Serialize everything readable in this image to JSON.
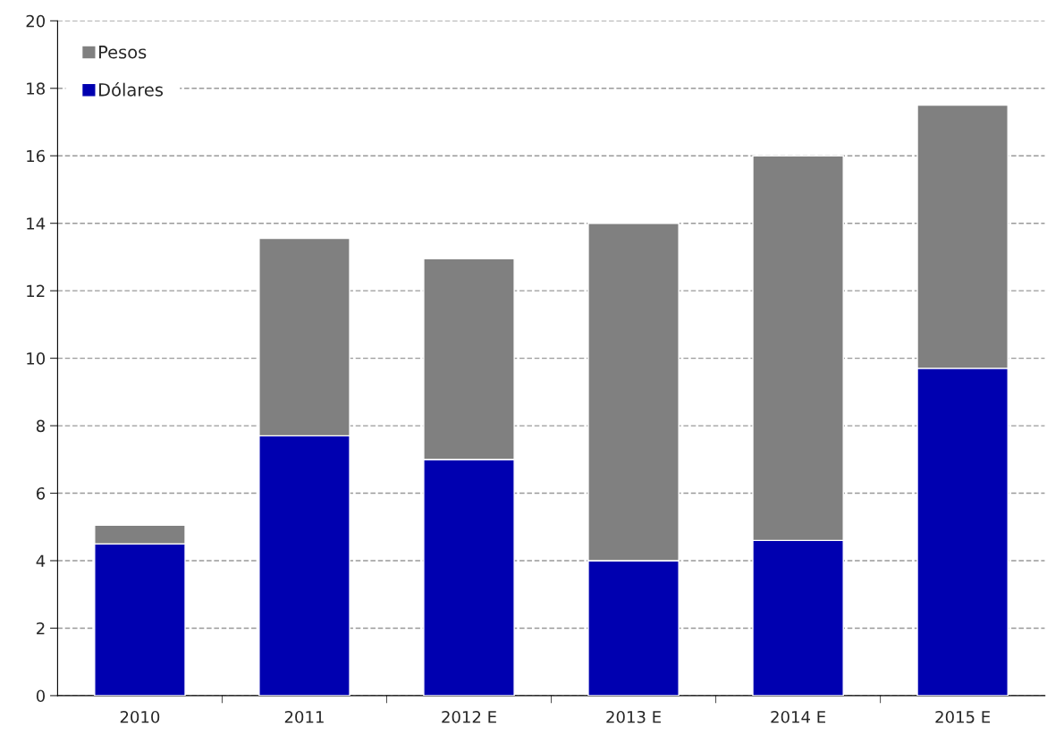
{
  "chart_data": {
    "type": "bar",
    "stacked": true,
    "categories": [
      "2010",
      "2011",
      "2012 E",
      "2013 E",
      "2014 E",
      "2015 E"
    ],
    "series": [
      {
        "name": "Dólares",
        "color": "#0000b0",
        "values": [
          4.5,
          7.7,
          7.0,
          4.0,
          4.6,
          9.7
        ]
      },
      {
        "name": "Pesos",
        "color": "#808080",
        "values": [
          0.55,
          5.85,
          5.95,
          10.0,
          11.4,
          7.8
        ]
      }
    ],
    "ylim": [
      0,
      20
    ],
    "yticks": [
      0,
      2,
      4,
      6,
      8,
      10,
      12,
      14,
      16,
      18,
      20
    ],
    "grid": "y",
    "legend": "top left"
  }
}
